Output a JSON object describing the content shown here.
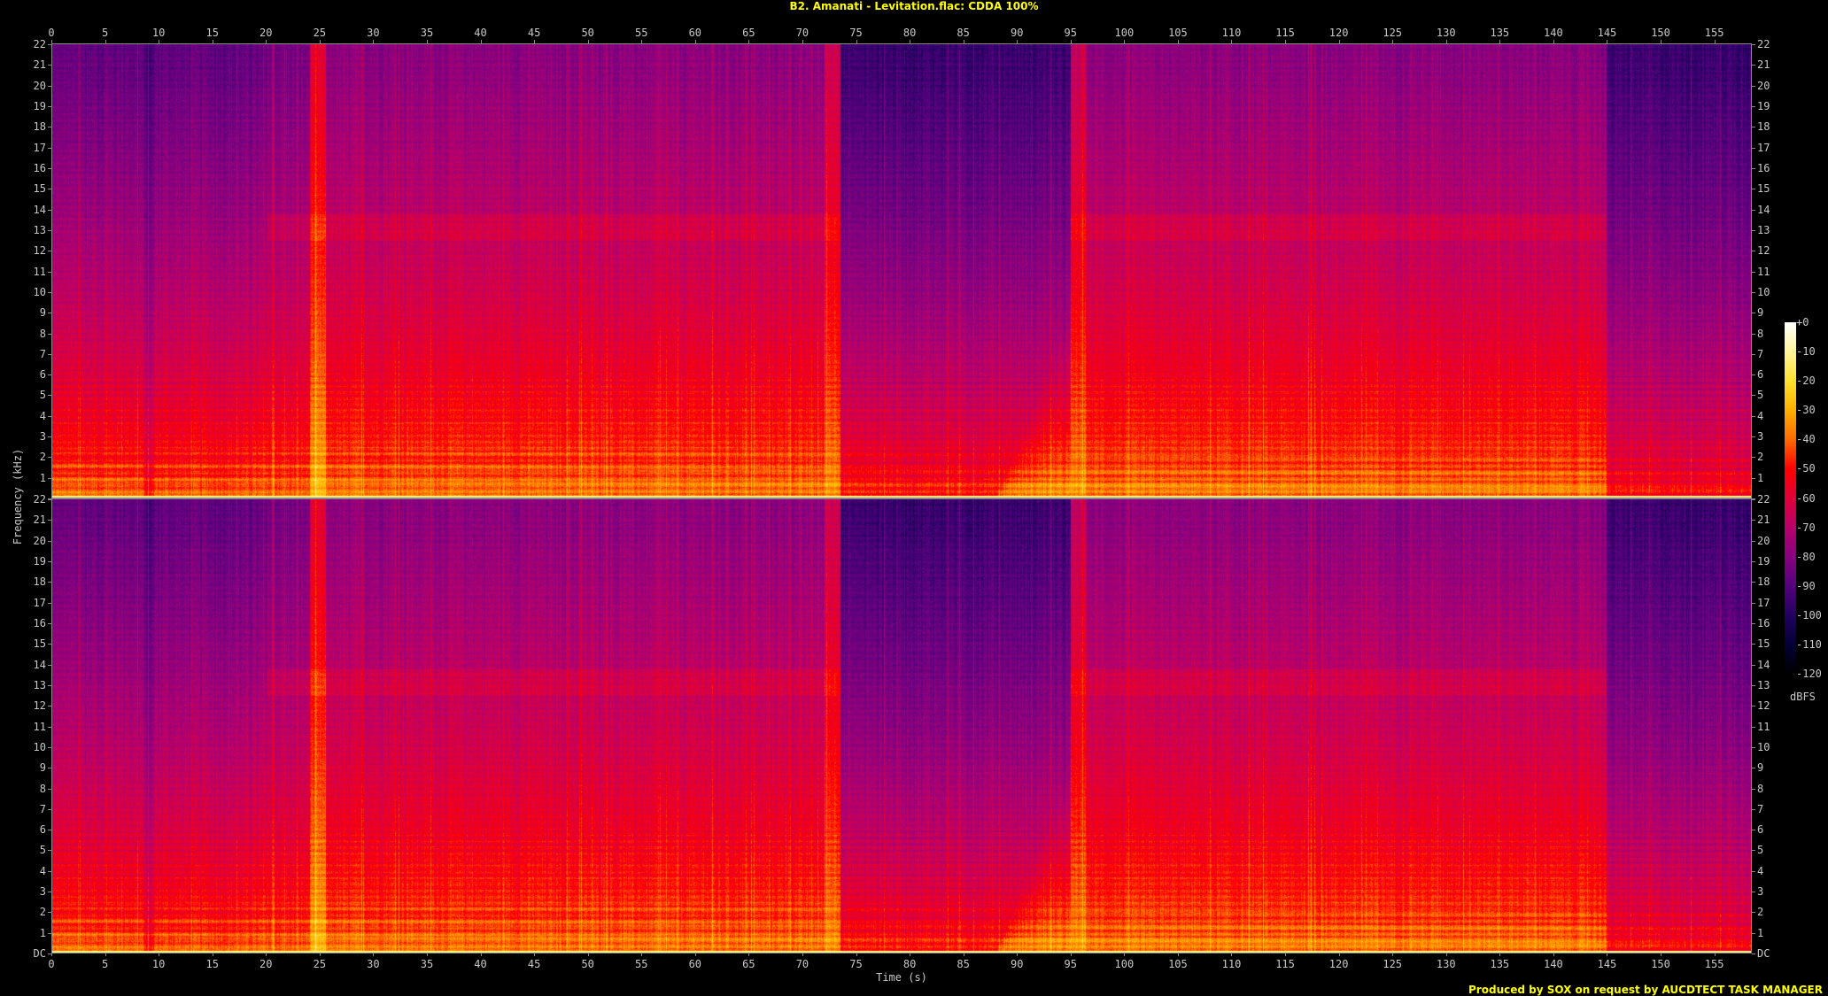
{
  "title": "B2. Amanati - Levitation.flac: CDDA 100%",
  "footer": "Produced by SOX on request by AUCDTECT TASK MANAGER",
  "chart_data": {
    "type": "heatmap",
    "title": "B2. Amanati - Levitation.flac: CDDA 100%",
    "xlabel": "Time (s)",
    "ylabel": "Frequency (kHz)",
    "xlim": [
      0,
      158.5
    ],
    "ylim": [
      0,
      22.05
    ],
    "channels": 2,
    "x_ticks": [
      "0",
      "5",
      "10",
      "15",
      "20",
      "25",
      "30",
      "35",
      "40",
      "45",
      "50",
      "55",
      "60",
      "65",
      "70",
      "75",
      "80",
      "85",
      "90",
      "95",
      "100",
      "105",
      "110",
      "115",
      "120",
      "125",
      "130",
      "135",
      "140",
      "145",
      "150",
      "155"
    ],
    "y_ticks": [
      "DC",
      "1",
      "2",
      "3",
      "4",
      "5",
      "6",
      "7",
      "8",
      "9",
      "10",
      "11",
      "12",
      "13",
      "14",
      "15",
      "16",
      "17",
      "18",
      "19",
      "20",
      "21",
      "22"
    ],
    "colorbar": {
      "unit": "dBFS",
      "range": [
        -120,
        0
      ],
      "ticks": [
        "+0",
        "-10",
        "-20",
        "-30",
        "-40",
        "-50",
        "-60",
        "-70",
        "-80",
        "-90",
        "-100",
        "-110",
        "-120"
      ],
      "colors": [
        "#ffffff",
        "#fff59a",
        "#ffe030",
        "#ffb000",
        "#ff6a00",
        "#ff0000",
        "#e0003a",
        "#b8006c",
        "#880080",
        "#56007e",
        "#220060",
        "#040036",
        "#000000"
      ]
    },
    "segments": [
      {
        "start": 0,
        "end": 8.5,
        "db_high": -88,
        "db_low": -35
      },
      {
        "start": 8.5,
        "end": 9.5,
        "db_high": -94,
        "db_low": -45
      },
      {
        "start": 9.5,
        "end": 20,
        "db_high": -88,
        "db_low": -36
      },
      {
        "start": 20,
        "end": 24,
        "db_high": -84,
        "db_low": -36
      },
      {
        "start": 24,
        "end": 25.5,
        "db_high": -60,
        "db_low": -24
      },
      {
        "start": 25.5,
        "end": 72,
        "db_high": -80,
        "db_low": -33
      },
      {
        "start": 72,
        "end": 73.5,
        "db_high": -64,
        "db_low": -28
      },
      {
        "start": 73.5,
        "end": 95,
        "db_high": -96,
        "db_low": -42
      },
      {
        "start": 95,
        "end": 96.5,
        "db_high": -68,
        "db_low": -28
      },
      {
        "start": 96.5,
        "end": 145,
        "db_high": -80,
        "db_low": -32
      },
      {
        "start": 145,
        "end": 158.5,
        "db_high": -96,
        "db_low": -46
      }
    ]
  }
}
